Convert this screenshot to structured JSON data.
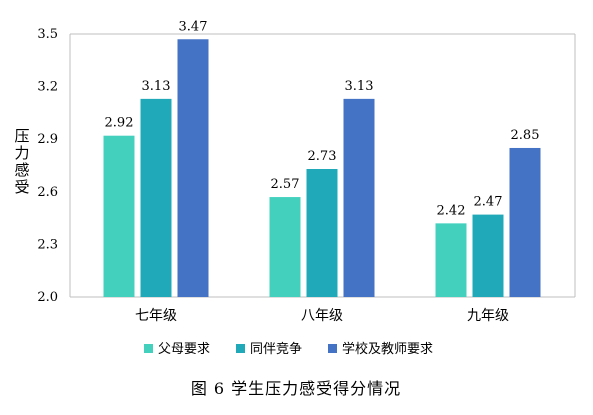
{
  "chart_data": {
    "type": "bar",
    "ylabel": "压力感受",
    "xlabel": "",
    "ylim": [
      2.0,
      3.5
    ],
    "yticks": [
      "2.0",
      "2.3",
      "2.6",
      "2.9",
      "3.2",
      "3.5"
    ],
    "categories": [
      "七年级",
      "八年级",
      "九年级"
    ],
    "series": [
      {
        "name": "父母要求",
        "color": "#43D1BE",
        "values": [
          2.92,
          2.57,
          2.42
        ]
      },
      {
        "name": "同伴竞争",
        "color": "#20A9B8",
        "values": [
          3.13,
          2.73,
          2.47
        ]
      },
      {
        "name": "学校及教师要求",
        "color": "#4472C4",
        "values": [
          3.47,
          3.13,
          2.85
        ]
      }
    ],
    "legend_position": "bottom",
    "grid": false
  },
  "caption": "图 6   学生压力感受得分情况"
}
